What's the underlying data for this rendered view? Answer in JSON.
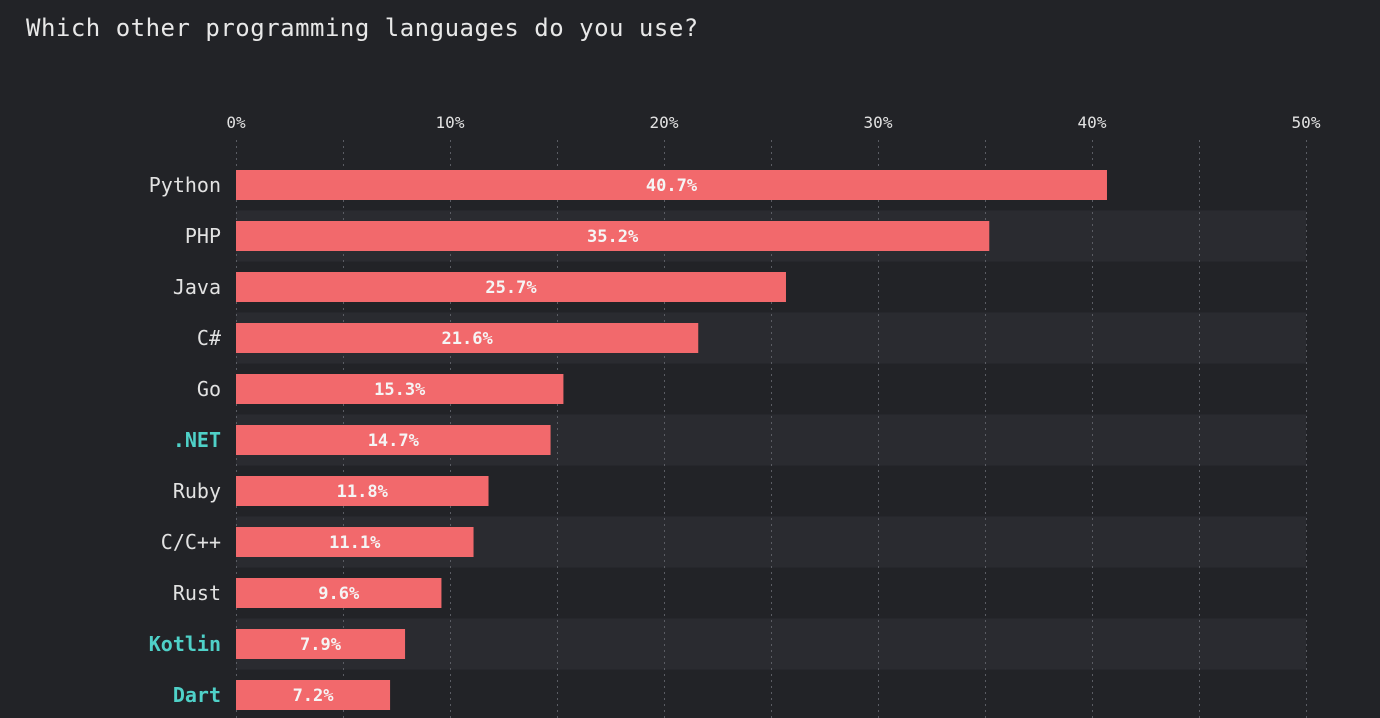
{
  "page": {
    "title": "Which other programming languages do you use?"
  },
  "colors": {
    "background": "#222327",
    "band": "#2a2b30",
    "bar": "#f2696c",
    "label": "#e2e2e2",
    "highlight_label": "#4fd1c8",
    "value_label": "#f5f5f5",
    "grid": "#5a5c63"
  },
  "chart_data": {
    "type": "bar",
    "orientation": "horizontal",
    "title": "Which other programming languages do you use?",
    "xlabel": "",
    "ylabel": "",
    "xlim": [
      0,
      50
    ],
    "ticks": [
      {
        "value": 0,
        "label": "0%"
      },
      {
        "value": 10,
        "label": "10%"
      },
      {
        "value": 20,
        "label": "20%"
      },
      {
        "value": 30,
        "label": "30%"
      },
      {
        "value": 40,
        "label": "40%"
      },
      {
        "value": 50,
        "label": "50%"
      }
    ],
    "grid": true,
    "axis_position": "top",
    "categories": [
      "Python",
      "PHP",
      "Java",
      "C#",
      "Go",
      ".NET",
      "Ruby",
      "C/C++",
      "Rust",
      "Kotlin",
      "Dart"
    ],
    "values": [
      40.7,
      35.2,
      25.7,
      21.6,
      15.3,
      14.7,
      11.8,
      11.1,
      9.6,
      7.9,
      7.2
    ],
    "value_labels": [
      "40.7%",
      "35.2%",
      "25.7%",
      "21.6%",
      "15.3%",
      "14.7%",
      "11.8%",
      "11.1%",
      "9.6%",
      "7.9%",
      "7.2%"
    ],
    "highlighted": [
      ".NET",
      "Kotlin",
      "Dart"
    ]
  }
}
